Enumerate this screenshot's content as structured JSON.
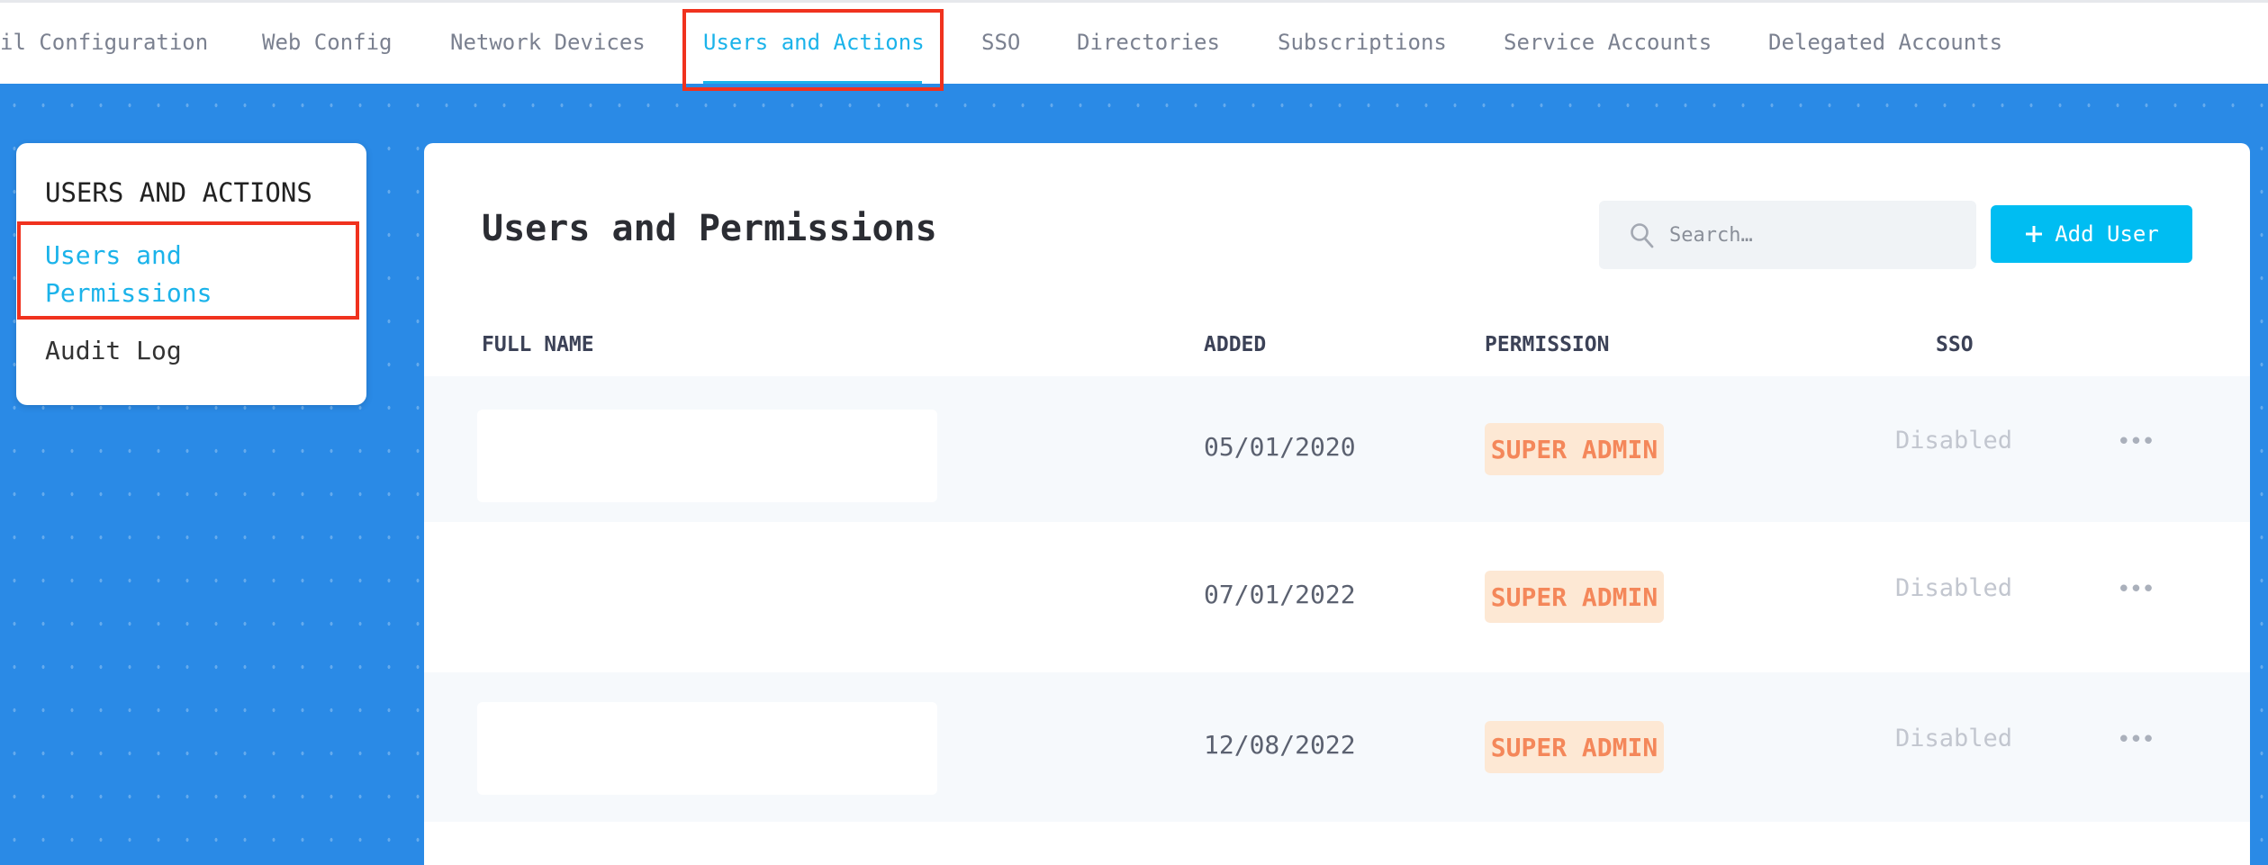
{
  "top_nav": {
    "tabs": [
      {
        "label": "il Configuration"
      },
      {
        "label": "Web Config"
      },
      {
        "label": "Network Devices"
      },
      {
        "label": "Users and Actions",
        "active": true
      },
      {
        "label": "SSO"
      },
      {
        "label": "Directories"
      },
      {
        "label": "Subscriptions"
      },
      {
        "label": "Service Accounts"
      },
      {
        "label": "Delegated Accounts"
      }
    ]
  },
  "sidebar": {
    "title": "USERS AND ACTIONS",
    "items": [
      {
        "label_line1": "Users and",
        "label_line2": "Permissions",
        "active": true
      },
      {
        "label": "Audit Log"
      }
    ]
  },
  "main": {
    "title": "Users and Permissions",
    "search": {
      "placeholder": "Search…",
      "icon": "search-icon"
    },
    "add_button": {
      "label": "Add User",
      "icon": "plus-icon"
    },
    "columns": [
      "FULL NAME",
      "ADDED",
      "PERMISSION",
      "SSO"
    ],
    "rows": [
      {
        "full_name": "",
        "added": "05/01/2020",
        "permission": "SUPER ADMIN",
        "sso": "Disabled",
        "menu": "•••"
      },
      {
        "full_name": "",
        "added": "07/01/2022",
        "permission": "SUPER ADMIN",
        "sso": "Disabled",
        "menu": "•••"
      },
      {
        "full_name": "",
        "added": "12/08/2022",
        "permission": "SUPER ADMIN",
        "sso": "Disabled",
        "menu": "•••"
      }
    ]
  },
  "colors": {
    "accent": "#1bb3ea",
    "button": "#00bdf2",
    "background": "#2a8ae6",
    "badge_bg": "#fde8d4",
    "badge_text": "#f4875a",
    "highlight": "#f0321e"
  }
}
